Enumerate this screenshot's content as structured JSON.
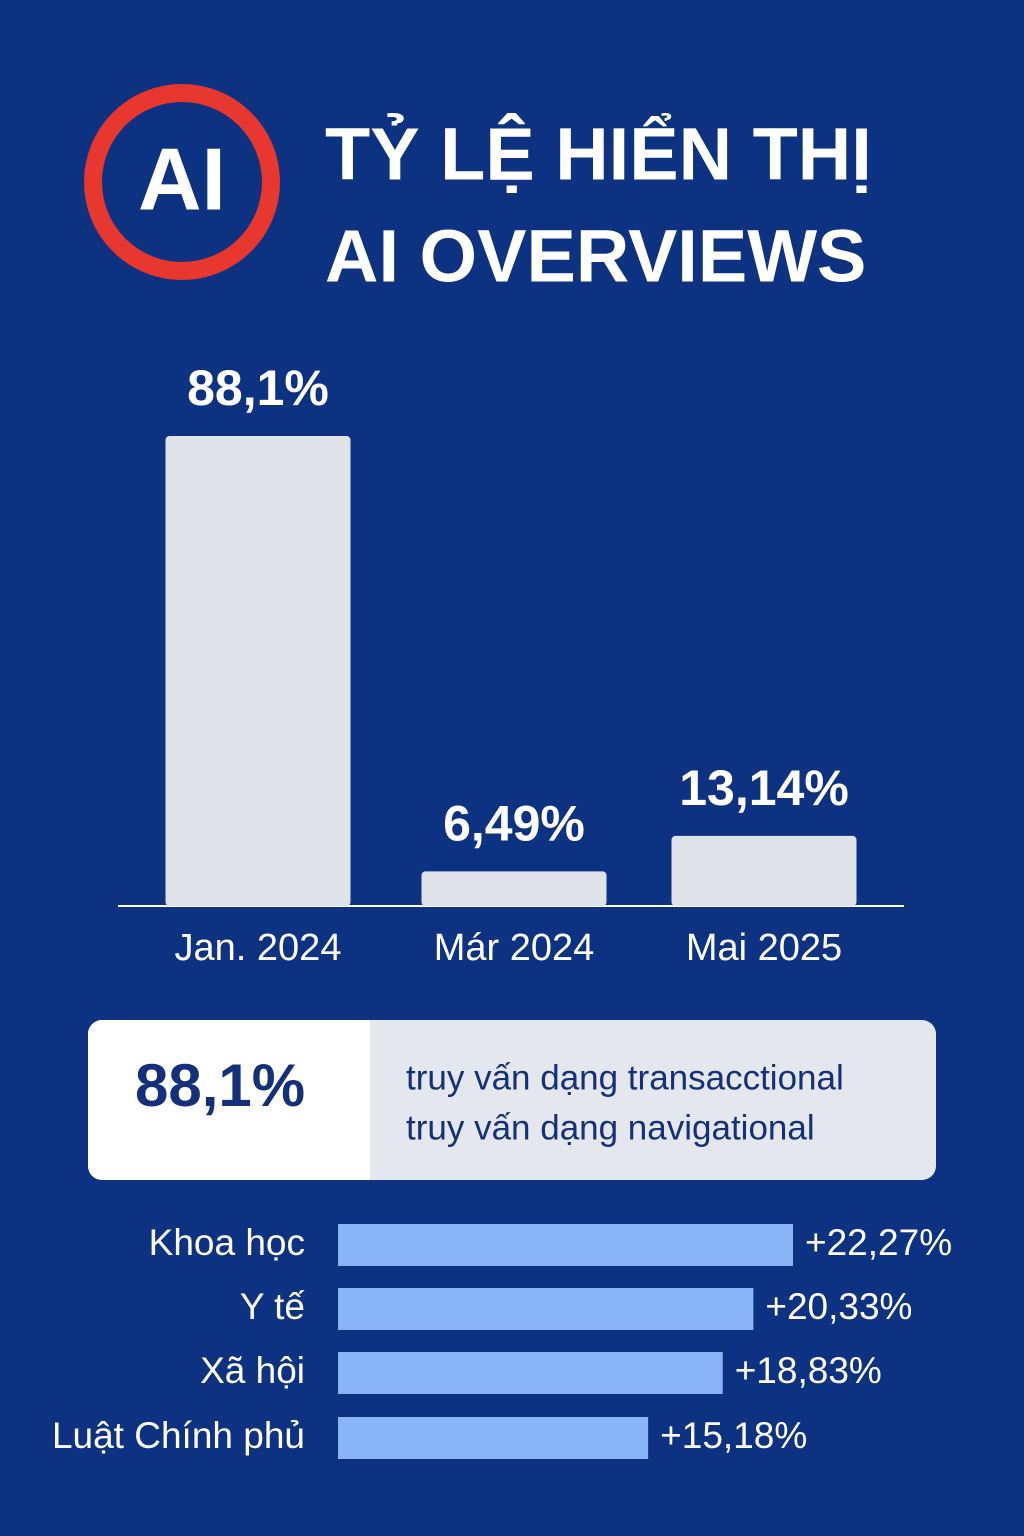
{
  "icon": "AI",
  "title": [
    "TỶ LỆ HIỂN THỊ",
    "AI OVERVIEWS"
  ],
  "chart_data": [
    {
      "type": "bar",
      "categories": [
        "Jan. 2024",
        "Már 2024",
        "Mai 2025"
      ],
      "values": [
        88.1,
        6.49,
        13.14
      ],
      "value_labels": [
        "88,1%",
        "6,49%",
        "13,14%"
      ],
      "color": "#dfe2e8"
    },
    {
      "type": "hbar",
      "categories": [
        "Khoa học",
        "Y tế",
        "Xã hội",
        "Luật Chính phủ"
      ],
      "values": [
        22.27,
        20.33,
        18.83,
        15.18
      ],
      "value_labels": [
        "+22,27%",
        "+20,33%",
        "+18,83%",
        "+15,18%"
      ],
      "color": "#8ab4f8"
    }
  ],
  "callout": {
    "value": "88,1%",
    "lines": [
      "truy vấn dạng transacctional",
      "truy vấn dạng navigational"
    ]
  }
}
